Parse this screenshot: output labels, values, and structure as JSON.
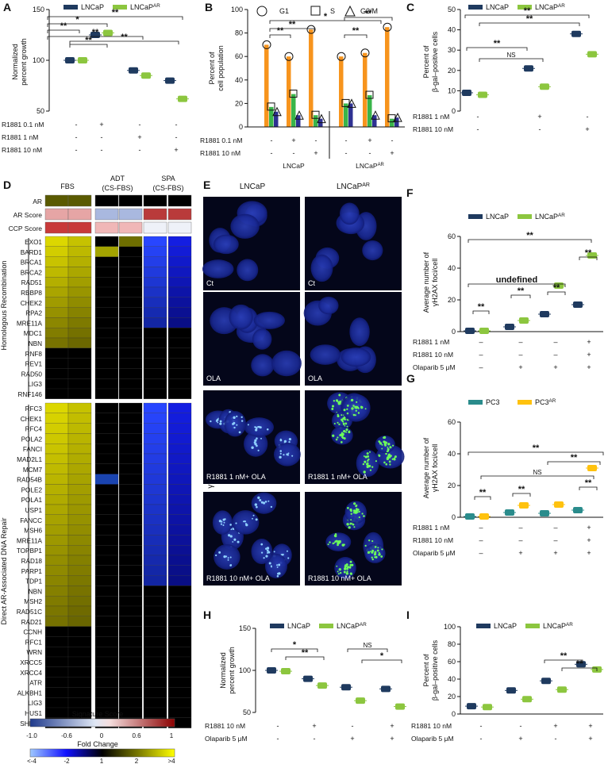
{
  "colors": {
    "dark": "#1f3a5f",
    "light": "#8cc63f",
    "orange": "#f7941d",
    "green": "#39b54a",
    "blue": "#2e3192",
    "teal": "#2a8c8c",
    "yellow": "#ffc20e",
    "micro_bg": "#04061a"
  },
  "panels": {
    "A": {
      "letter": "A",
      "ylabel": [
        "Normalized",
        "percent growth"
      ],
      "legend": [
        "LNCaP",
        "LNCaP^AR"
      ],
      "chart_data": {
        "type": "scatter",
        "ylim": [
          50,
          150
        ],
        "yticks": [
          "50",
          "100",
          "150"
        ],
        "groups": 6,
        "series": [
          {
            "name": "LNCaP",
            "values": [
              100,
              125,
              90,
              80
            ]
          },
          {
            "name": "LNCaP^AR",
            "values": [
              100,
              127,
              85,
              62
            ]
          }
        ],
        "conditions": [
          {
            "label": "R1881 0.1 nM",
            "marks": [
              "-",
              "+",
              "-",
              "-"
            ]
          },
          {
            "label": "R1881 1 nM",
            "marks": [
              "-",
              "-",
              "+",
              "-"
            ]
          },
          {
            "label": "R1881 10 nM",
            "marks": [
              "-",
              "-",
              "-",
              "+"
            ]
          }
        ],
        "sig": [
          "*",
          "**",
          "**",
          "**",
          "**",
          "**"
        ]
      }
    },
    "B": {
      "letter": "B",
      "ylabel": [
        "Percent of",
        "cell population"
      ],
      "legend": [
        "G1",
        "S",
        "G2/M"
      ],
      "chart_data": {
        "type": "bar",
        "ylim": [
          0,
          100
        ],
        "yticks": [
          "0",
          "20",
          "40",
          "60",
          "80",
          "100"
        ],
        "groups": [
          {
            "name": "LNCaP",
            "G1": [
              70,
              60,
              83
            ],
            "S": [
              17,
              28,
              10
            ],
            "G2M": [
              13,
              10,
              7
            ]
          },
          {
            "name": "LNCaP^AR",
            "G1": [
              60,
              63,
              85
            ],
            "S": [
              20,
              27,
              7
            ],
            "G2M": [
              20,
              10,
              8
            ]
          }
        ],
        "conditions": [
          {
            "label": "R1881 0.1 nM",
            "marks": [
              "-",
              "+",
              "-",
              "-",
              "+",
              "-"
            ]
          },
          {
            "label": "R1881 10 nM",
            "marks": [
              "-",
              "-",
              "+",
              "-",
              "-",
              "+"
            ]
          }
        ],
        "sig": [
          "*",
          "**",
          "**",
          "**",
          "**"
        ]
      }
    },
    "C": {
      "letter": "C",
      "ylabel": [
        "Percent of",
        "β-gal–positive cells"
      ],
      "legend": [
        "LNCaP",
        "LNCaP^AR"
      ],
      "chart_data": {
        "type": "scatter",
        "ylim": [
          0,
          50
        ],
        "yticks": [
          "0",
          "10",
          "20",
          "30",
          "40",
          "50"
        ],
        "series": [
          {
            "name": "LNCaP",
            "values": [
              9,
              21,
              38
            ]
          },
          {
            "name": "LNCaP^AR",
            "values": [
              8,
              12,
              28
            ]
          }
        ],
        "conditions": [
          {
            "label": "R1881 1 nM",
            "marks": [
              "-",
              "+",
              "-"
            ]
          },
          {
            "label": "R1881 10 nM",
            "marks": [
              "-",
              "-",
              "+"
            ]
          }
        ],
        "sig": [
          "**",
          "**",
          "**",
          "NS"
        ]
      }
    },
    "D": {
      "letter": "D",
      "cols": [
        "FBS",
        "ADT",
        "(CS-FBS)",
        "SPA",
        "(CS-FBS)"
      ],
      "top_rows": [
        "AR",
        "AR Score",
        "CCP Score"
      ],
      "hr_title": "Homologous Recombination",
      "hr_genes": [
        "EXO1",
        "BARD1",
        "BRCA1",
        "BRCA2",
        "RAD51",
        "RBBP8",
        "CHEK2",
        "RPA2",
        "MRE11A",
        "MDC1",
        "NBN",
        "RNF8",
        "REV1",
        "RAD50",
        "LIG3",
        "RNF146"
      ],
      "dr_title": "Direct AR-Associated DNA Repair",
      "dr_genes": [
        "RFC3",
        "CHEK1",
        "RFC4",
        "POLA2",
        "FANCI",
        "MAD2L1",
        "MCM7",
        "RAD54B",
        "POLE2",
        "POLA1",
        "USP1",
        "FANCC",
        "MSH6",
        "MRE11A",
        "TOPBP1",
        "RAD18",
        "PARP1",
        "TDP1",
        "NBN",
        "MSH2",
        "RAD51C",
        "RAD21",
        "CCNH",
        "RFC1",
        "WRN",
        "XRCC5",
        "XRCC4",
        "ATR",
        "ALKBH1",
        "LIG3",
        "HUS1",
        "SHFM1"
      ],
      "sig_title": "Signature Score",
      "sig_ticks": [
        "-1.0",
        "-0.6",
        "0",
        "0.6",
        "1"
      ],
      "fc_title": "Fold Change",
      "fc_ticks": [
        "<-4",
        "-2",
        "1",
        "2",
        ">4"
      ]
    },
    "E": {
      "letter": "E",
      "cols": [
        "LNCaP",
        "LNCaP^AR"
      ],
      "ylabel": "γH2AX",
      "rows": [
        [
          "Ct",
          "Ct"
        ],
        [
          "OLA",
          "OLA"
        ],
        [
          "R1881 1 nM+ OLA",
          "R1881 1 nM+ OLA"
        ],
        [
          "R1881 10 nM+ OLA",
          "R1881 10 nM+ OLA"
        ]
      ]
    },
    "F": {
      "letter": "F",
      "ylabel": [
        "Average number of",
        "γH2AX foci/cell"
      ],
      "legend": [
        "LNCaP",
        "LNCaP^AR"
      ],
      "chart_data": {
        "type": "scatter",
        "ylim": [
          0,
          60
        ],
        "yticks": [
          "0",
          "20",
          "40",
          "60"
        ],
        "series": [
          {
            "name": "LNCaP",
            "values": [
              0.5,
              3,
              11,
              17
            ]
          },
          {
            "name": "LNCaP^AR",
            "values": [
              0.5,
              7,
              29,
              48
            ]
          }
        ],
        "conditions": [
          {
            "label": "R1881 1 nM",
            "marks": [
              "–",
              "–",
              "–",
              "+"
            ]
          },
          {
            "label": "R1881 10 nM",
            "marks": [
              "–",
              "–",
              "–",
              "+"
            ]
          },
          {
            "label": "Olaparib 5 μM",
            "marks": [
              "–",
              "+",
              "+",
              "+"
            ]
          }
        ],
        "sig": [
          "**",
          "**",
          "**",
          "**",
          "**"
        ]
      }
    },
    "G": {
      "letter": "G",
      "ylabel": [
        "Average number of",
        "γH2AX foci/cell"
      ],
      "legend": [
        "PC3",
        "PC3^AR"
      ],
      "chart_data": {
        "type": "scatter",
        "ylim": [
          0,
          60
        ],
        "yticks": [
          "0",
          "20",
          "40",
          "60"
        ],
        "series": [
          {
            "name": "PC3",
            "values": [
              0.5,
              3,
              2.5,
              4.5
            ]
          },
          {
            "name": "PC3^AR",
            "values": [
              0.5,
              7.5,
              8,
              31
            ]
          }
        ],
        "conditions": [
          {
            "label": "R1881 1 nM",
            "marks": [
              "–",
              "–",
              "–",
              "+"
            ]
          },
          {
            "label": "R1881 10 nM",
            "marks": [
              "–",
              "–",
              "–",
              "+"
            ]
          },
          {
            "label": "Olaparib 5 μM",
            "marks": [
              "–",
              "+",
              "+",
              "+"
            ]
          }
        ],
        "sig": [
          "**",
          "**",
          "**",
          "NS",
          "**",
          "**"
        ]
      }
    },
    "H": {
      "letter": "H",
      "ylabel": [
        "Normalized",
        "percent growth"
      ],
      "legend": [
        "LNCaP",
        "LNCaP^AR"
      ],
      "chart_data": {
        "type": "scatter",
        "ylim": [
          50,
          150
        ],
        "yticks": [
          "50",
          "100",
          "150"
        ],
        "series": [
          {
            "name": "LNCaP",
            "values": [
              100,
              90,
              80,
              78
            ]
          },
          {
            "name": "LNCaP^AR",
            "values": [
              99,
              82,
              64,
              57
            ]
          }
        ],
        "conditions": [
          {
            "label": "R1881 10 nM",
            "marks": [
              "-",
              "+",
              "-",
              "+"
            ]
          },
          {
            "label": "Olaparib 5 μM",
            "marks": [
              "-",
              "-",
              "+",
              "+"
            ]
          }
        ],
        "sig": [
          "*",
          "**",
          "NS",
          "*"
        ]
      }
    },
    "I": {
      "letter": "I",
      "ylabel": [
        "Percent of",
        "β-gal–positive cells"
      ],
      "legend": [
        "LNCaP",
        "LNCaP^AR"
      ],
      "chart_data": {
        "type": "scatter",
        "ylim": [
          0,
          100
        ],
        "yticks": [
          "0",
          "20",
          "40",
          "60",
          "80",
          "100"
        ],
        "series": [
          {
            "name": "LNCaP",
            "values": [
              9,
              27,
              38,
              57
            ]
          },
          {
            "name": "LNCaP^AR",
            "values": [
              8,
              17,
              28,
              51
            ]
          }
        ],
        "conditions": [
          {
            "label": "R1881 10 nM",
            "marks": [
              "-",
              "-",
              "+",
              "+"
            ]
          },
          {
            "label": "Olaparib 5 μM",
            "marks": [
              "-",
              "+",
              "-",
              "+"
            ]
          }
        ],
        "sig": [
          "**",
          "**"
        ]
      }
    }
  }
}
